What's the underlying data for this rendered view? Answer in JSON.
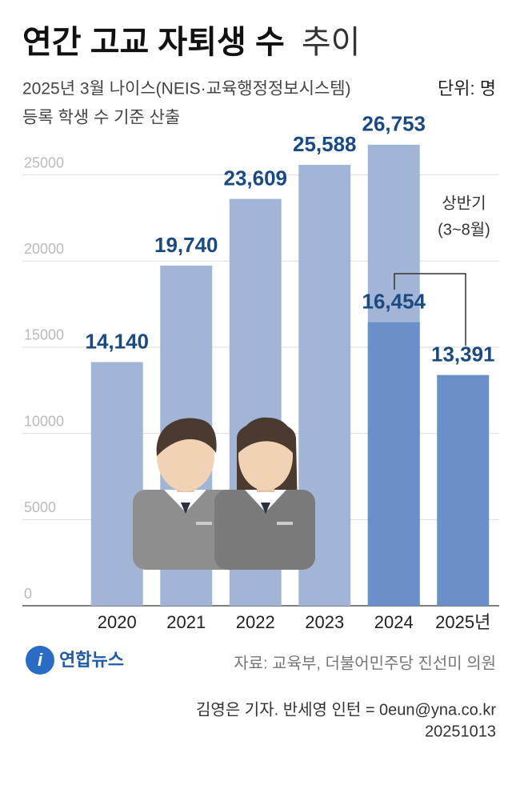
{
  "chart_data": {
    "type": "bar",
    "title": [
      "연간 고교 자퇴생 수",
      "추이"
    ],
    "subtitle": [
      "2025년 3월 나이스(NEIS·교육행정정보시스템)",
      "등록 학생 수 기준 산출"
    ],
    "unit": "단위: 명",
    "categories": [
      "2020",
      "2021",
      "2022",
      "2023",
      "2024",
      "2025년"
    ],
    "series": [
      {
        "color": "#a3b5d6",
        "values": [
          14140,
          19740,
          23609,
          25588,
          26753,
          null
        ],
        "value_labels": [
          "14,140",
          "19,740",
          "23,609",
          "25,588",
          "26,753",
          null
        ]
      },
      {
        "color": "#6b8fc9",
        "values": [
          null,
          null,
          null,
          null,
          16454,
          13391
        ],
        "value_labels": [
          null,
          null,
          null,
          null,
          "16,454",
          "13,391"
        ]
      }
    ],
    "annotation": [
      "상반기",
      "(3~8월)"
    ],
    "ylim": [
      0,
      28000
    ],
    "yticks": [
      0,
      5000,
      10000,
      15000,
      20000,
      25000
    ],
    "grid": true,
    "logo": "연합뉴스",
    "source": "자료: 교육부, 더불어민주당 진선미 의원",
    "credit": [
      "김영은 기자. 반세영 인턴 = 0eun@yna.co.kr",
      "20251013"
    ]
  }
}
